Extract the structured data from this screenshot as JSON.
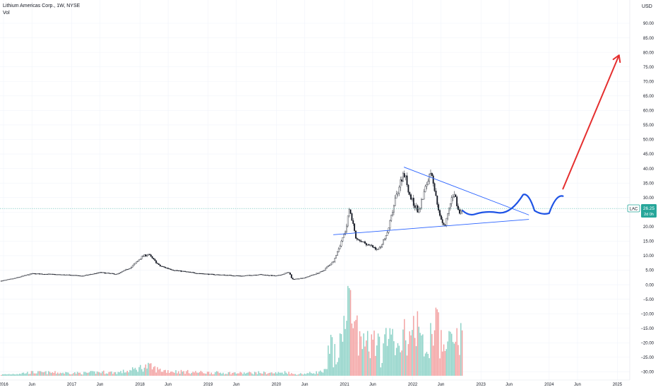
{
  "legend": {
    "symbol_title": "Lithium Americas Corp., 1W, NYSE",
    "volume_label": "Vol"
  },
  "price_tag": {
    "ticker": "LAC",
    "price": "26.25",
    "countdown": "2d 0h"
  },
  "chart_data": {
    "type": "candlestick",
    "currency": "USD",
    "y_axis_ticks": [
      "90.00",
      "85.00",
      "80.00",
      "75.00",
      "70.00",
      "65.00",
      "60.00",
      "55.00",
      "50.00",
      "45.00",
      "40.00",
      "35.00",
      "30.00",
      "25.00",
      "20.00",
      "15.00",
      "10.00",
      "5.00",
      "0.00",
      "−5.00",
      "−10.00",
      "−15.00",
      "−20.00",
      "−25.00",
      "−30.00"
    ],
    "x_axis_ticks": [
      "2016",
      "Jun",
      "2017",
      "Jun",
      "2018",
      "Jun",
      "2019",
      "Jun",
      "2020",
      "Jun",
      "2021",
      "Jun",
      "2022",
      "Jun",
      "2023",
      "Jun",
      "2024",
      "Jun",
      "2025"
    ],
    "last_price": 26.25,
    "price_path": [
      [
        "2015-12-20",
        1.3
      ],
      [
        "2016-03-01",
        2.2
      ],
      [
        "2016-06-01",
        3.8
      ],
      [
        "2016-09-01",
        3.6
      ],
      [
        "2016-12-15",
        3.3
      ],
      [
        "2017-03-01",
        3.0
      ],
      [
        "2017-06-01",
        4.2
      ],
      [
        "2017-09-01",
        3.6
      ],
      [
        "2017-11-15",
        6.0
      ],
      [
        "2018-01-15",
        9.8
      ],
      [
        "2018-02-15",
        10.5
      ],
      [
        "2018-04-15",
        6.5
      ],
      [
        "2018-07-01",
        5.0
      ],
      [
        "2018-10-01",
        4.2
      ],
      [
        "2019-01-01",
        3.6
      ],
      [
        "2019-04-01",
        3.3
      ],
      [
        "2019-07-01",
        3.0
      ],
      [
        "2019-10-01",
        3.5
      ],
      [
        "2020-01-01",
        3.0
      ],
      [
        "2020-03-10",
        4.3
      ],
      [
        "2020-03-25",
        1.8
      ],
      [
        "2020-06-01",
        2.4
      ],
      [
        "2020-09-01",
        4.5
      ],
      [
        "2020-11-01",
        8.0
      ],
      [
        "2021-01-10",
        19.0
      ],
      [
        "2021-01-28",
        27.0
      ],
      [
        "2021-03-01",
        16.0
      ],
      [
        "2021-05-01",
        14.0
      ],
      [
        "2021-07-01",
        12.0
      ],
      [
        "2021-08-15",
        17.0
      ],
      [
        "2021-10-15",
        33.0
      ],
      [
        "2021-11-15",
        39.0
      ],
      [
        "2021-12-20",
        30.0
      ],
      [
        "2022-02-01",
        25.0
      ],
      [
        "2022-04-10",
        40.0
      ],
      [
        "2022-05-15",
        26.0
      ],
      [
        "2022-06-20",
        20.0
      ],
      [
        "2022-08-10",
        32.0
      ],
      [
        "2022-09-10",
        24.0
      ],
      [
        "2022-09-25",
        26.25
      ]
    ],
    "volume_scale_max": 24,
    "trendlines": [
      {
        "color": "#2962ff",
        "points": [
          [
            "2021-11-15",
            40.5
          ],
          [
            "2023-09-15",
            24.0
          ]
        ]
      },
      {
        "color": "#2962ff",
        "points": [
          [
            "2020-11-01",
            17.2
          ],
          [
            "2023-09-15",
            22.5
          ]
        ]
      }
    ],
    "projection_curve": {
      "color": "#1e53e5",
      "points": [
        [
          "2022-09-25",
          25.5
        ],
        [
          "2022-12-01",
          24.3
        ],
        [
          "2023-04-01",
          24.8
        ],
        [
          "2023-08-15",
          31.0
        ],
        [
          "2023-10-15",
          25.5
        ],
        [
          "2024-01-01",
          24.6
        ],
        [
          "2024-03-15",
          30.5
        ]
      ]
    },
    "projection_arrow": {
      "color": "#e52f2f",
      "points": [
        [
          "2024-03-15",
          33.0
        ],
        [
          "2025-01-10",
          79.0
        ]
      ]
    },
    "colors": {
      "up": "#ffffff",
      "down": "#131722",
      "wick": "#131722",
      "vol_up": "#8fd3c8",
      "vol_down": "#f3a3a3",
      "price_line": "#26a69a",
      "grid": "#f0f3fa",
      "axis_text": "#131722"
    }
  }
}
